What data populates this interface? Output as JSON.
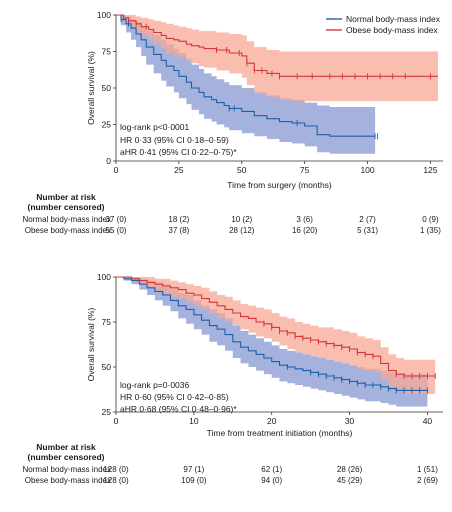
{
  "colors": {
    "normal_line": "#1f5fa8",
    "normal_band": "#8f9fd6",
    "obese_line": "#d2363a",
    "obese_band": "#f7a894",
    "axis": "#333333"
  },
  "chart_data": [
    {
      "type": "line",
      "subtype": "kaplan-meier",
      "xlabel": "Time from surgery (months)",
      "ylabel": "Overall survival (%)",
      "xlim": [
        0,
        130
      ],
      "ylim": [
        0,
        100
      ],
      "xticks": [
        0,
        25,
        50,
        75,
        100,
        125
      ],
      "yticks": [
        0,
        25,
        50,
        75,
        100
      ],
      "legend": {
        "placement": "top-right",
        "entries": [
          "Normal body-mass index",
          "Obese body-mass index"
        ]
      },
      "annotations": [
        "log-rank p<0·0001",
        "HR 0·33 (95% CI 0·18–0·59)",
        "aHR 0·41 (95% CI 0·22–0·75)*"
      ],
      "series": [
        {
          "name": "Normal body-mass index",
          "x": [
            0,
            2,
            4,
            6,
            8,
            10,
            12,
            15,
            18,
            20,
            23,
            25,
            28,
            30,
            33,
            35,
            38,
            40,
            43,
            45,
            50,
            55,
            60,
            65,
            70,
            75,
            80,
            85,
            90,
            95,
            100,
            103
          ],
          "y": [
            100,
            97,
            94,
            91,
            87,
            83,
            78,
            73,
            69,
            65,
            62,
            58,
            54,
            50,
            47,
            44,
            42,
            40,
            38,
            36,
            34,
            31,
            29,
            27,
            26,
            24,
            18,
            17,
            17,
            17,
            17,
            17
          ],
          "lower": [
            100,
            93,
            88,
            83,
            78,
            72,
            66,
            60,
            55,
            51,
            47,
            43,
            39,
            35,
            32,
            29,
            27,
            25,
            23,
            21,
            19,
            17,
            15,
            13,
            12,
            10,
            6,
            5,
            5,
            5,
            5,
            5
          ],
          "upper": [
            100,
            100,
            99,
            97,
            95,
            92,
            89,
            86,
            83,
            80,
            77,
            74,
            70,
            66,
            63,
            60,
            58,
            56,
            54,
            52,
            50,
            47,
            45,
            43,
            42,
            40,
            38,
            37,
            37,
            37,
            37,
            37
          ],
          "censored": [
            2,
            5,
            45,
            47,
            72,
            103,
            104
          ]
        },
        {
          "name": "Obese body-mass index",
          "x": [
            0,
            3,
            5,
            8,
            10,
            13,
            15,
            18,
            20,
            23,
            25,
            28,
            30,
            33,
            35,
            40,
            45,
            50,
            52,
            55,
            60,
            65,
            70,
            75,
            80,
            90,
            100,
            110,
            120,
            128
          ],
          "y": [
            100,
            98,
            96,
            94,
            92,
            90,
            88,
            86,
            84,
            83,
            82,
            80,
            79,
            78,
            77,
            76,
            74,
            72,
            67,
            62,
            60,
            58,
            58,
            58,
            58,
            58,
            58,
            58,
            58,
            58
          ],
          "lower": [
            100,
            95,
            92,
            89,
            86,
            83,
            80,
            77,
            74,
            72,
            71,
            68,
            67,
            65,
            64,
            62,
            60,
            57,
            52,
            46,
            44,
            42,
            41,
            41,
            41,
            41,
            41,
            41,
            41,
            41
          ],
          "upper": [
            100,
            100,
            100,
            99,
            98,
            97,
            96,
            95,
            94,
            93,
            92,
            91,
            90,
            89,
            89,
            88,
            87,
            86,
            82,
            78,
            76,
            75,
            75,
            75,
            75,
            75,
            75,
            75,
            75,
            75
          ],
          "censored": [
            3,
            8,
            12,
            40,
            44,
            49,
            52,
            55,
            58,
            62,
            65,
            72,
            78,
            85,
            90,
            95,
            100,
            105,
            110,
            115,
            125
          ]
        }
      ],
      "risk_table": {
        "header": [
          "Number at risk",
          "(number censored)"
        ],
        "times": [
          0,
          25,
          50,
          75,
          100,
          125
        ],
        "rows": [
          {
            "label": "Normal body-mass index",
            "values": [
              "37 (0)",
              "18 (2)",
              "10 (2)",
              "3 (6)",
              "2 (7)",
              "0 (9)"
            ]
          },
          {
            "label": "Obese body-mass index",
            "values": [
              "55 (0)",
              "37 (8)",
              "28 (12)",
              "16 (20)",
              "5 (31)",
              "1 (35)"
            ]
          }
        ]
      }
    },
    {
      "type": "line",
      "subtype": "kaplan-meier",
      "xlabel": "Time from treatment initiation (months)",
      "ylabel": "Overall survival (%)",
      "xlim": [
        0,
        42
      ],
      "ylim": [
        25,
        100
      ],
      "xticks": [
        0,
        10,
        20,
        30,
        40
      ],
      "yticks": [
        25,
        50,
        75,
        100
      ],
      "annotations": [
        "log-rank p=0·0036",
        "HR 0·60 (95% CI 0·42–0·85)",
        "aHR 0·68 (95% CI 0·48–0·96)*"
      ],
      "series": [
        {
          "name": "Normal body-mass index",
          "x": [
            0,
            1,
            2,
            3,
            4,
            5,
            6,
            7,
            8,
            9,
            10,
            11,
            12,
            13,
            14,
            15,
            16,
            17,
            18,
            19,
            20,
            21,
            22,
            23,
            24,
            25,
            26,
            27,
            28,
            29,
            30,
            31,
            32,
            33,
            34,
            35,
            36,
            37,
            38,
            39,
            40
          ],
          "y": [
            100,
            99,
            98,
            96,
            94,
            92,
            90,
            87,
            84,
            82,
            79,
            76,
            73,
            71,
            68,
            64,
            61,
            59,
            57,
            55,
            53,
            51,
            50,
            49,
            48,
            47,
            46,
            45,
            44,
            43,
            42,
            41,
            40,
            40,
            39,
            38,
            37,
            37,
            37,
            37,
            37
          ],
          "lower": [
            100,
            98,
            96,
            93,
            90,
            87,
            84,
            81,
            77,
            74,
            71,
            68,
            64,
            62,
            59,
            55,
            52,
            50,
            48,
            46,
            44,
            42,
            41,
            40,
            39,
            38,
            37,
            36,
            35,
            34,
            33,
            32,
            31,
            31,
            30,
            29,
            28,
            28,
            28,
            28,
            28
          ],
          "upper": [
            100,
            100,
            100,
            99,
            98,
            97,
            96,
            93,
            91,
            90,
            87,
            84,
            82,
            80,
            77,
            73,
            70,
            68,
            66,
            64,
            62,
            60,
            59,
            58,
            57,
            56,
            55,
            54,
            53,
            52,
            51,
            50,
            49,
            49,
            48,
            47,
            46,
            46,
            46,
            46,
            46
          ],
          "censored": [
            22,
            25,
            26,
            27,
            28,
            29,
            30,
            31,
            32,
            33,
            34,
            35,
            36,
            37,
            38,
            39,
            40
          ]
        },
        {
          "name": "Obese body-mass index",
          "x": [
            0,
            1,
            2,
            3,
            4,
            5,
            6,
            7,
            8,
            9,
            10,
            11,
            12,
            13,
            14,
            15,
            16,
            17,
            18,
            19,
            20,
            21,
            22,
            23,
            24,
            25,
            26,
            27,
            28,
            29,
            30,
            31,
            32,
            33,
            34,
            35,
            36,
            37,
            38,
            39,
            40,
            41
          ],
          "y": [
            100,
            100,
            99,
            98,
            97,
            96,
            95,
            94,
            93,
            91,
            90,
            88,
            86,
            84,
            82,
            80,
            78,
            77,
            75,
            74,
            72,
            70,
            69,
            67,
            66,
            65,
            64,
            63,
            62,
            61,
            60,
            58,
            57,
            56,
            52,
            48,
            46,
            45,
            45,
            45,
            45,
            45
          ],
          "lower": [
            100,
            99,
            97,
            95,
            94,
            92,
            91,
            89,
            88,
            86,
            84,
            82,
            80,
            77,
            75,
            73,
            71,
            69,
            67,
            66,
            64,
            62,
            60,
            58,
            57,
            56,
            55,
            54,
            53,
            52,
            51,
            49,
            48,
            47,
            43,
            39,
            37,
            35,
            35,
            35,
            35,
            35
          ],
          "upper": [
            100,
            100,
            100,
            100,
            100,
            99,
            99,
            98,
            97,
            96,
            95,
            94,
            92,
            90,
            89,
            87,
            85,
            84,
            83,
            82,
            80,
            78,
            77,
            75,
            74,
            73,
            72,
            72,
            71,
            70,
            69,
            67,
            66,
            65,
            61,
            57,
            55,
            54,
            54,
            54,
            54,
            54
          ],
          "censored": [
            19,
            20,
            21,
            22,
            23,
            24,
            25,
            26,
            27,
            28,
            29,
            30,
            31,
            32,
            33,
            36,
            37,
            38,
            39,
            40,
            41
          ]
        }
      ],
      "risk_table": {
        "header": [
          "Number at risk",
          "(number censored)"
        ],
        "times": [
          0,
          10,
          20,
          30,
          40
        ],
        "rows": [
          {
            "label": "Normal body-mass index",
            "values": [
              "128 (0)",
              "97 (1)",
              "62 (1)",
              "28 (26)",
              "1 (51)"
            ]
          },
          {
            "label": "Obese body-mass index",
            "values": [
              "128 (0)",
              "109 (0)",
              "94 (0)",
              "45 (29)",
              "2 (69)"
            ]
          }
        ]
      }
    }
  ]
}
